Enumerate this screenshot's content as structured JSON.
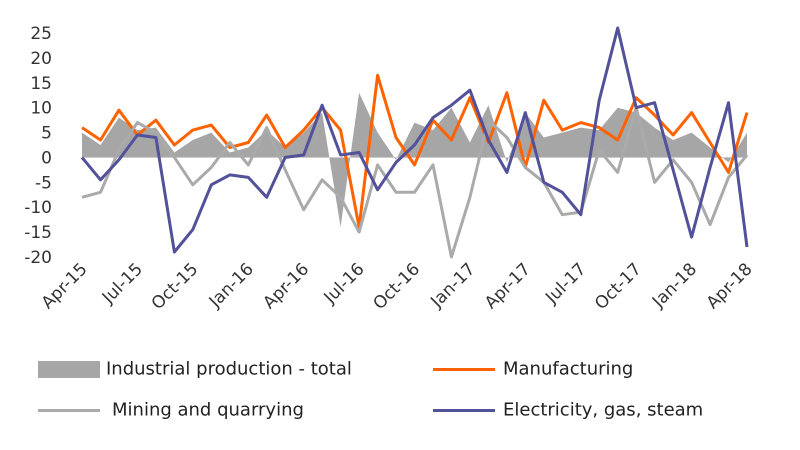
{
  "chart_data": {
    "type": "line",
    "title": "",
    "xlabel": "",
    "ylabel": "",
    "ylim": [
      -20,
      25
    ],
    "yticks": [
      25,
      20,
      15,
      10,
      5,
      0,
      -5,
      -10,
      -15,
      -20
    ],
    "grid": false,
    "legend_position": "bottom",
    "x": [
      "Apr-15",
      "May-15",
      "Jun-15",
      "Jul-15",
      "Aug-15",
      "Sep-15",
      "Oct-15",
      "Nov-15",
      "Dec-15",
      "Jan-16",
      "Feb-16",
      "Mar-16",
      "Apr-16",
      "May-16",
      "Jun-16",
      "Jul-16",
      "Aug-16",
      "Sep-16",
      "Oct-16",
      "Nov-16",
      "Dec-16",
      "Jan-17",
      "Feb-17",
      "Mar-17",
      "Apr-17",
      "May-17",
      "Jun-17",
      "Jul-17",
      "Aug-17",
      "Sep-17",
      "Oct-17",
      "Nov-17",
      "Dec-17",
      "Jan-18",
      "Feb-18",
      "Mar-18",
      "Apr-18"
    ],
    "xtick_labels": [
      "Apr-15",
      "Jul-15",
      "Oct-15",
      "Jan-16",
      "Apr-16",
      "Jul-16",
      "Oct-16",
      "Jan-17",
      "Apr-17",
      "Jul-17",
      "Oct-17",
      "Jan-18",
      "Apr-18"
    ],
    "series": [
      {
        "name": "Industrial production - total",
        "style": "area",
        "color": "#a6a6a6",
        "values": [
          5,
          2.5,
          8,
          5.5,
          6,
          1,
          3.5,
          5,
          1,
          2,
          5.5,
          2,
          5,
          9,
          -14,
          13,
          5,
          -0.5,
          7,
          5.5,
          10,
          3,
          10.5,
          -1,
          9,
          4,
          5,
          6,
          5.5,
          10,
          9,
          6,
          3.5,
          5,
          2,
          -1,
          5
        ]
      },
      {
        "name": "Manufacturing",
        "style": "line",
        "color": "#ff6200",
        "values": [
          6,
          3.5,
          9.5,
          4.5,
          7.5,
          2.5,
          5.5,
          6.5,
          2,
          3,
          8.5,
          2,
          5.5,
          10,
          5.5,
          -14,
          16.5,
          4,
          -1.5,
          7.5,
          3.5,
          12,
          3,
          13,
          -2,
          11.5,
          5.5,
          7,
          6,
          3.5,
          12,
          8.5,
          4.5,
          9,
          3,
          -3,
          9
        ]
      },
      {
        "name": "Mining and quarrying",
        "style": "line",
        "color": "#aaaaaa",
        "values": [
          -8,
          -7,
          1.5,
          7,
          5,
          0,
          -5.5,
          -2,
          3,
          -1.5,
          6,
          -2.5,
          -10.5,
          -4.5,
          -8,
          -15,
          -1.5,
          -7,
          -7,
          -1.5,
          -20,
          -8,
          7.5,
          4,
          -2,
          -5,
          -11.5,
          -11,
          1.5,
          -3,
          10,
          -5,
          -0.5,
          -5,
          -13.5,
          -4,
          0.5
        ]
      },
      {
        "name": "Electricity, gas, steam",
        "style": "line",
        "color": "#525199",
        "values": [
          0,
          -4.5,
          -0.5,
          4.5,
          4,
          -19,
          -14.5,
          -5.5,
          -3.5,
          -4,
          -8,
          0,
          0.5,
          10.5,
          0.5,
          1,
          -6.5,
          -1,
          2.5,
          8,
          10.5,
          13.5,
          3.5,
          -3,
          9,
          -5,
          -7,
          -11.5,
          11.5,
          26,
          10,
          11,
          -2.5,
          -16,
          -2,
          11,
          -18
        ]
      }
    ]
  }
}
